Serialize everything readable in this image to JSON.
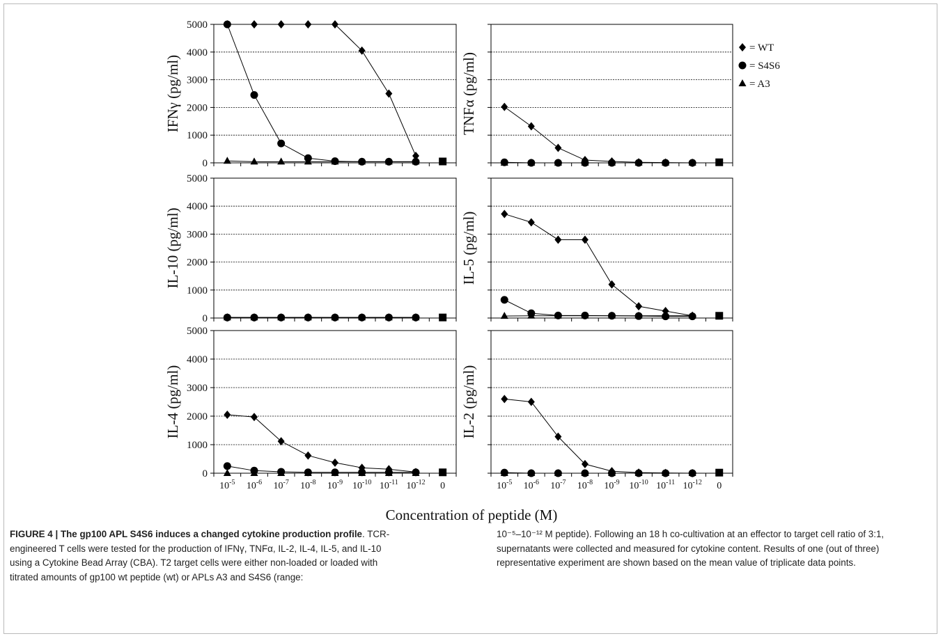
{
  "legend": {
    "items": [
      {
        "label": "= WT",
        "marker": "diamond"
      },
      {
        "label": "= S4S6",
        "marker": "circle"
      },
      {
        "label": "= A3",
        "marker": "triangle"
      }
    ]
  },
  "x_axis_title": "Concentration of peptide (M)",
  "caption": {
    "title": "FIGURE 4 | The gp100 APL S4S6 induces a changed cytokine production profile",
    "body_part1": ". TCR-engineered T cells were tested for the production of IFNγ, TNFα, IL-2, IL-4, IL-5, and IL-10 using a Cytokine Bead Array (CBA). T2 target cells were either non-loaded or loaded with titrated amounts of gp100 wt peptide (wt) or APLs A3 and S4S6 (range:",
    "body_part2": "10⁻⁵–10⁻¹² M peptide). Following an 18 h co-cultivation at an effector to target cell ratio of 3:1, supernatants were collected and measured for cytokine content. Results of one (out of three) representative experiment are shown based on the mean value of triplicate data points."
  },
  "colors": {
    "line": "#000000",
    "grid": "#000000",
    "text": "#111111"
  },
  "chart_data": [
    {
      "type": "line",
      "ylabel": "IFNγ (pg/ml)",
      "ylim": [
        0,
        5000
      ],
      "yticks": [
        "0",
        "1000",
        "2000",
        "3000",
        "4000",
        "5000"
      ],
      "categories": [
        "10-5",
        "10-6",
        "10-7",
        "10-8",
        "10-9",
        "10-10",
        "10-11",
        "10-12",
        "0"
      ],
      "series": [
        {
          "name": "WT",
          "marker": "diamond",
          "values": [
            5000,
            5000,
            5000,
            5000,
            5000,
            4050,
            2500,
            250,
            null
          ]
        },
        {
          "name": "S4S6",
          "marker": "circle",
          "values": [
            5000,
            2450,
            700,
            170,
            60,
            40,
            40,
            40,
            null
          ]
        },
        {
          "name": "A3",
          "marker": "triangle",
          "values": [
            70,
            40,
            40,
            40,
            40,
            40,
            40,
            40,
            null
          ]
        }
      ],
      "control_zero": 50,
      "grid": true,
      "show_xticks": false
    },
    {
      "type": "line",
      "ylabel": "TNFα (pg/ml)",
      "ylim": [
        0,
        5000
      ],
      "yticks": [],
      "categories": [
        "10-5",
        "10-6",
        "10-7",
        "10-8",
        "10-9",
        "10-10",
        "10-11",
        "10-12",
        "0"
      ],
      "series": [
        {
          "name": "WT",
          "marker": "diamond",
          "values": [
            2020,
            1320,
            540,
            100,
            50,
            20,
            10,
            0,
            null
          ]
        },
        {
          "name": "S4S6",
          "marker": "circle",
          "values": [
            20,
            0,
            0,
            0,
            0,
            0,
            0,
            0,
            null
          ]
        },
        {
          "name": "A3",
          "marker": "triangle",
          "values": [
            0,
            0,
            0,
            0,
            0,
            0,
            0,
            0,
            null
          ]
        }
      ],
      "control_zero": 20,
      "grid": true,
      "show_xticks": false
    },
    {
      "type": "line",
      "ylabel": "IL-10 (pg/ml)",
      "ylim": [
        0,
        5000
      ],
      "yticks": [
        "0",
        "1000",
        "2000",
        "3000",
        "4000",
        "5000"
      ],
      "categories": [
        "10-5",
        "10-6",
        "10-7",
        "10-8",
        "10-9",
        "10-10",
        "10-11",
        "10-12",
        "0"
      ],
      "series": [
        {
          "name": "WT",
          "marker": "diamond",
          "values": [
            20,
            20,
            20,
            20,
            20,
            20,
            20,
            20,
            null
          ]
        },
        {
          "name": "S4S6",
          "marker": "circle",
          "values": [
            20,
            20,
            20,
            20,
            20,
            20,
            20,
            20,
            null
          ]
        },
        {
          "name": "A3",
          "marker": "triangle",
          "values": [
            20,
            20,
            20,
            20,
            20,
            20,
            20,
            20,
            null
          ]
        }
      ],
      "control_zero": 20,
      "grid": true,
      "show_xticks": false
    },
    {
      "type": "line",
      "ylabel": "IL-5 (pg/ml)",
      "ylim": [
        0,
        5000
      ],
      "yticks": [],
      "categories": [
        "10-5",
        "10-6",
        "10-7",
        "10-8",
        "10-9",
        "10-10",
        "10-11",
        "10-12",
        "0"
      ],
      "series": [
        {
          "name": "WT",
          "marker": "diamond",
          "values": [
            3720,
            3420,
            2800,
            2800,
            1200,
            420,
            250,
            80,
            null
          ]
        },
        {
          "name": "S4S6",
          "marker": "circle",
          "values": [
            650,
            170,
            90,
            90,
            80,
            70,
            60,
            60,
            null
          ]
        },
        {
          "name": "A3",
          "marker": "triangle",
          "values": [
            70,
            80,
            80,
            80,
            80,
            80,
            80,
            80,
            null
          ]
        }
      ],
      "control_zero": 80,
      "grid": true,
      "show_xticks": false
    },
    {
      "type": "line",
      "ylabel": "IL-4 (pg/ml)",
      "ylim": [
        0,
        5000
      ],
      "yticks": [
        "0",
        "1000",
        "2000",
        "3000",
        "4000",
        "5000"
      ],
      "categories": [
        "10-5",
        "10-6",
        "10-7",
        "10-8",
        "10-9",
        "10-10",
        "10-11",
        "10-12",
        "0"
      ],
      "series": [
        {
          "name": "WT",
          "marker": "diamond",
          "values": [
            2050,
            1970,
            1120,
            620,
            370,
            190,
            140,
            40,
            null
          ]
        },
        {
          "name": "S4S6",
          "marker": "circle",
          "values": [
            250,
            90,
            50,
            30,
            30,
            30,
            30,
            30,
            null
          ]
        },
        {
          "name": "A3",
          "marker": "triangle",
          "values": [
            0,
            0,
            0,
            0,
            0,
            0,
            0,
            0,
            null
          ]
        }
      ],
      "control_zero": 30,
      "grid": true,
      "show_xticks": true
    },
    {
      "type": "line",
      "ylabel": "IL-2 (pg/ml)",
      "ylim": [
        0,
        5000
      ],
      "yticks": [],
      "categories": [
        "10-5",
        "10-6",
        "10-7",
        "10-8",
        "10-9",
        "10-10",
        "10-11",
        "10-12",
        "0"
      ],
      "series": [
        {
          "name": "WT",
          "marker": "diamond",
          "values": [
            2600,
            2500,
            1280,
            320,
            70,
            20,
            10,
            0,
            null
          ]
        },
        {
          "name": "S4S6",
          "marker": "circle",
          "values": [
            20,
            0,
            0,
            0,
            0,
            0,
            0,
            0,
            null
          ]
        },
        {
          "name": "A3",
          "marker": "triangle",
          "values": [
            0,
            0,
            0,
            0,
            0,
            0,
            0,
            0,
            null
          ]
        }
      ],
      "control_zero": 20,
      "grid": true,
      "show_xticks": true
    }
  ]
}
